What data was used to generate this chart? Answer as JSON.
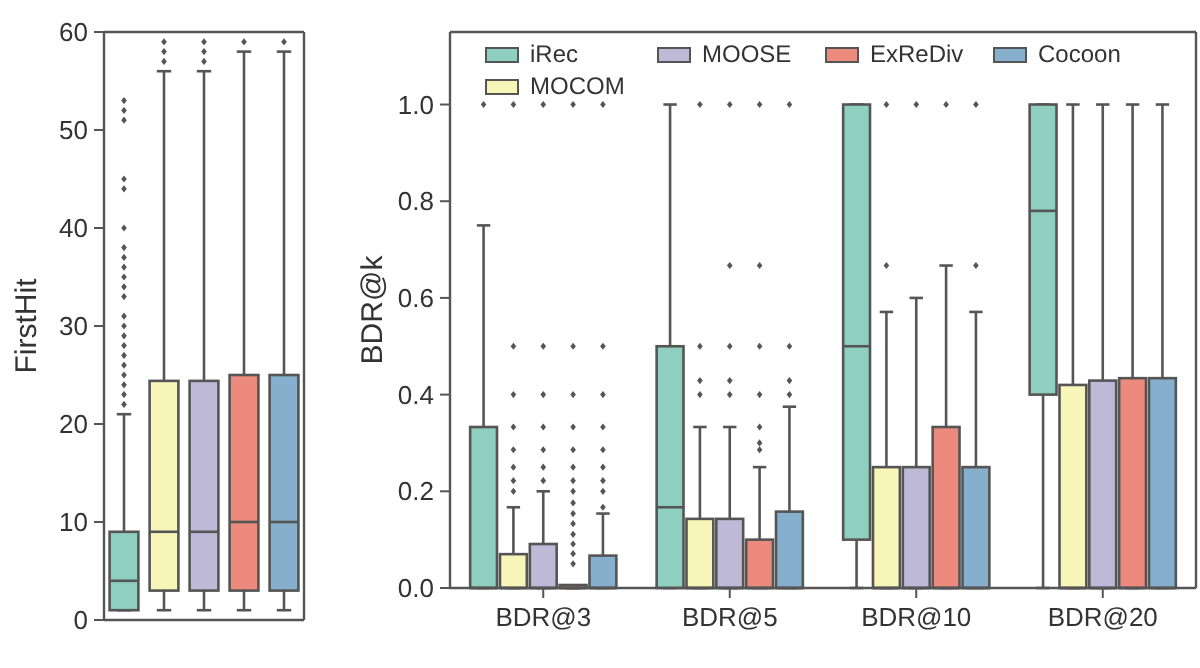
{
  "chart_data": [
    {
      "type": "box",
      "ylabel": "FirstHit",
      "categories": [
        null,
        null,
        null,
        null,
        null
      ],
      "ylim": [
        0,
        60
      ],
      "yticks": [
        0,
        10,
        20,
        30,
        40,
        50,
        60
      ],
      "tick_labels": "y",
      "colors": [
        "#8ecfc0",
        "#f7f5b8",
        "#bdb9d6",
        "#ec8a7e",
        "#86afcd"
      ],
      "boxes": [
        {
          "low": 1,
          "q1": 1,
          "median": 4,
          "q3": 9,
          "high": 21,
          "outliers": [
            22,
            23,
            24,
            25,
            26,
            27,
            28,
            29,
            30,
            31,
            33,
            34,
            35,
            36,
            37,
            38,
            40,
            44,
            45,
            51,
            52,
            53
          ]
        },
        {
          "low": 1,
          "q1": 3,
          "median": 9,
          "q3": 24.4,
          "high": 56,
          "outliers": [
            57,
            58,
            59
          ]
        },
        {
          "low": 1,
          "q1": 3,
          "median": 9,
          "q3": 24.4,
          "high": 56,
          "outliers": [
            57,
            58,
            59
          ]
        },
        {
          "low": 1,
          "q1": 3,
          "median": 10,
          "q3": 25,
          "high": 58,
          "outliers": [
            59
          ]
        },
        {
          "low": 1,
          "q1": 3,
          "median": 10,
          "q3": 25,
          "high": 58,
          "outliers": [
            59
          ]
        }
      ]
    },
    {
      "type": "box",
      "ylabel": "BDR@k",
      "categories": [
        "BDR@3",
        "BDR@5",
        "BDR@10",
        "BDR@20"
      ],
      "ylim": [
        0,
        1.15
      ],
      "yticks": [
        {
          "value": 0,
          "label": "0.0"
        },
        0.2,
        0.4,
        0.6,
        0.8,
        {
          "value": 1,
          "label": "1.0"
        }
      ],
      "legend": "top",
      "series": [
        {
          "name": "iRec",
          "color": "#8ecfc0",
          "boxes": [
            {
              "low": 0,
              "q1": 0,
              "median": 0,
              "q3": 0.333,
              "high": 0.75,
              "outliers": [
                1.0
              ]
            },
            {
              "low": 0,
              "q1": 0,
              "median": 0.167,
              "q3": 0.5,
              "high": 1.0
            },
            {
              "low": 0,
              "q1": 0.1,
              "median": 0.5,
              "q3": 1.0,
              "high": 1.0
            },
            {
              "low": 0,
              "q1": 0.4,
              "median": 0.78,
              "q3": 1.0,
              "high": 1.0
            }
          ]
        },
        {
          "name": "MOCOM",
          "color": "#f7f5b8",
          "boxes": [
            {
              "low": 0,
              "q1": 0,
              "median": 0,
              "q3": 0.07,
              "high": 0.167,
              "outliers": [
                0.2,
                0.222,
                0.25,
                0.286,
                0.333,
                0.4,
                0.5,
                1.0
              ]
            },
            {
              "low": 0,
              "q1": 0,
              "median": 0,
              "q3": 0.143,
              "high": 0.333,
              "outliers": [
                0.4,
                0.429,
                0.5,
                1.0
              ]
            },
            {
              "low": 0,
              "q1": 0,
              "median": 0,
              "q3": 0.25,
              "high": 0.571,
              "outliers": [
                0.667,
                1.0
              ]
            },
            {
              "low": 0,
              "q1": 0,
              "median": 0,
              "q3": 0.42,
              "high": 1.0
            }
          ]
        },
        {
          "name": "MOOSE",
          "color": "#bdb9d6",
          "boxes": [
            {
              "low": 0,
              "q1": 0,
              "median": 0,
              "q3": 0.091,
              "high": 0.2,
              "outliers": [
                0.222,
                0.25,
                0.286,
                0.333,
                0.4,
                0.5,
                1.0
              ]
            },
            {
              "low": 0,
              "q1": 0,
              "median": 0,
              "q3": 0.143,
              "high": 0.333,
              "outliers": [
                0.4,
                0.429,
                0.5,
                0.667,
                1.0
              ]
            },
            {
              "low": 0,
              "q1": 0,
              "median": 0,
              "q3": 0.25,
              "high": 0.6,
              "outliers": [
                1.0
              ]
            },
            {
              "low": 0,
              "q1": 0,
              "median": 0,
              "q3": 0.429,
              "high": 1.0
            }
          ]
        },
        {
          "name": "ExReDiv",
          "color": "#ec8a7e",
          "boxes": [
            {
              "low": 0,
              "q1": 0,
              "median": 0,
              "q3": 0,
              "high": 0,
              "outliers": [
                0.05,
                0.071,
                0.091,
                0.111,
                0.133,
                0.154,
                0.176,
                0.2,
                0.222,
                0.25,
                0.286,
                0.333,
                0.4,
                0.5,
                1.0
              ]
            },
            {
              "low": 0,
              "q1": 0,
              "median": 0,
              "q3": 0.1,
              "high": 0.25,
              "outliers": [
                0.286,
                0.3,
                0.333,
                0.4,
                0.5,
                0.667,
                1.0
              ]
            },
            {
              "low": 0,
              "q1": 0,
              "median": 0,
              "q3": 0.333,
              "high": 0.667,
              "outliers": [
                1.0
              ]
            },
            {
              "low": 0,
              "q1": 0,
              "median": 0,
              "q3": 0.434,
              "high": 1.0
            }
          ]
        },
        {
          "name": "Cocoon",
          "color": "#86afcd",
          "boxes": [
            {
              "low": 0,
              "q1": 0,
              "median": 0,
              "q3": 0.067,
              "high": 0.154,
              "outliers": [
                0.167,
                0.2,
                0.222,
                0.25,
                0.286,
                0.333,
                0.4,
                0.5,
                1.0
              ]
            },
            {
              "low": 0,
              "q1": 0,
              "median": 0,
              "q3": 0.158,
              "high": 0.375,
              "outliers": [
                0.4,
                0.429,
                0.5,
                1.0
              ]
            },
            {
              "low": 0,
              "q1": 0,
              "median": 0,
              "q3": 0.25,
              "high": 0.571,
              "outliers": [
                0.667,
                1.0
              ]
            },
            {
              "low": 0,
              "q1": 0,
              "median": 0,
              "q3": 0.434,
              "high": 1.0
            }
          ]
        }
      ]
    }
  ]
}
